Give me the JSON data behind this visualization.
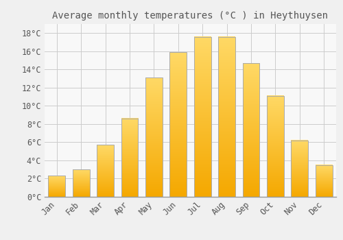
{
  "title": "Average monthly temperatures (°C ) in Heythuysen",
  "months": [
    "Jan",
    "Feb",
    "Mar",
    "Apr",
    "May",
    "Jun",
    "Jul",
    "Aug",
    "Sep",
    "Oct",
    "Nov",
    "Dec"
  ],
  "values": [
    2.3,
    3.0,
    5.7,
    8.6,
    13.1,
    15.9,
    17.6,
    17.6,
    14.7,
    11.1,
    6.2,
    3.5
  ],
  "bar_color_bottom": "#F5A800",
  "bar_color_top": "#FFD966",
  "bar_edge_color": "#AAAAAA",
  "background_color": "#F0F0F0",
  "plot_bg_color": "#F8F8F8",
  "grid_color": "#CCCCCC",
  "text_color": "#555555",
  "ylim": [
    0,
    19
  ],
  "yticks": [
    0,
    2,
    4,
    6,
    8,
    10,
    12,
    14,
    16,
    18
  ],
  "ytick_labels": [
    "0°C",
    "2°C",
    "4°C",
    "6°C",
    "8°C",
    "10°C",
    "12°C",
    "14°C",
    "16°C",
    "18°C"
  ],
  "title_fontsize": 10,
  "tick_fontsize": 8.5,
  "font_family": "monospace"
}
